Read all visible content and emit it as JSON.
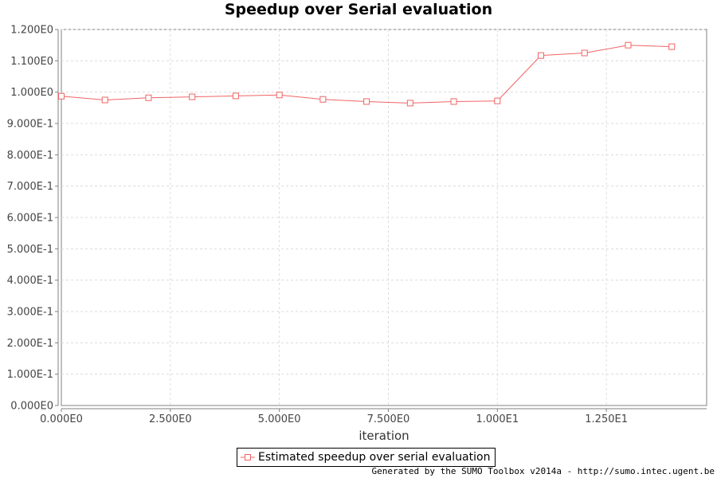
{
  "chart_data": {
    "type": "line",
    "title": "Speedup over Serial evaluation",
    "xlabel": "iteration",
    "ylabel": "",
    "xlim": [
      0,
      14.8
    ],
    "ylim": [
      0,
      1.2
    ],
    "xticks": [
      0,
      2.5,
      5,
      7.5,
      10,
      12.5
    ],
    "xtick_labels": [
      "0.000E0",
      "2.500E0",
      "5.000E0",
      "7.500E0",
      "1.000E1",
      "1.250E1"
    ],
    "yticks": [
      0,
      0.1,
      0.2,
      0.3,
      0.4,
      0.5,
      0.6,
      0.7,
      0.8,
      0.9,
      1.0,
      1.1,
      1.2
    ],
    "ytick_labels": [
      "0.000E0",
      "1.000E-1",
      "2.000E-1",
      "3.000E-1",
      "4.000E-1",
      "5.000E-1",
      "6.000E-1",
      "7.000E-1",
      "8.000E-1",
      "9.000E-1",
      "1.000E0",
      "1.100E0",
      "1.200E0"
    ],
    "grid": true,
    "legend_position": "bottom-center",
    "series": [
      {
        "name": "Estimated speedup over serial evaluation",
        "color": "#f06464",
        "marker": "square",
        "x": [
          0,
          1,
          2,
          3,
          4,
          5,
          6,
          7,
          8,
          9,
          10,
          11,
          12,
          13,
          14
        ],
        "y": [
          0.987,
          0.975,
          0.982,
          0.985,
          0.988,
          0.991,
          0.977,
          0.97,
          0.965,
          0.97,
          0.972,
          1.117,
          1.125,
          1.15,
          1.145
        ]
      }
    ]
  },
  "footer_text": "Generated by the SUMO Toolbox v2014a - http://sumo.intec.ugent.be"
}
